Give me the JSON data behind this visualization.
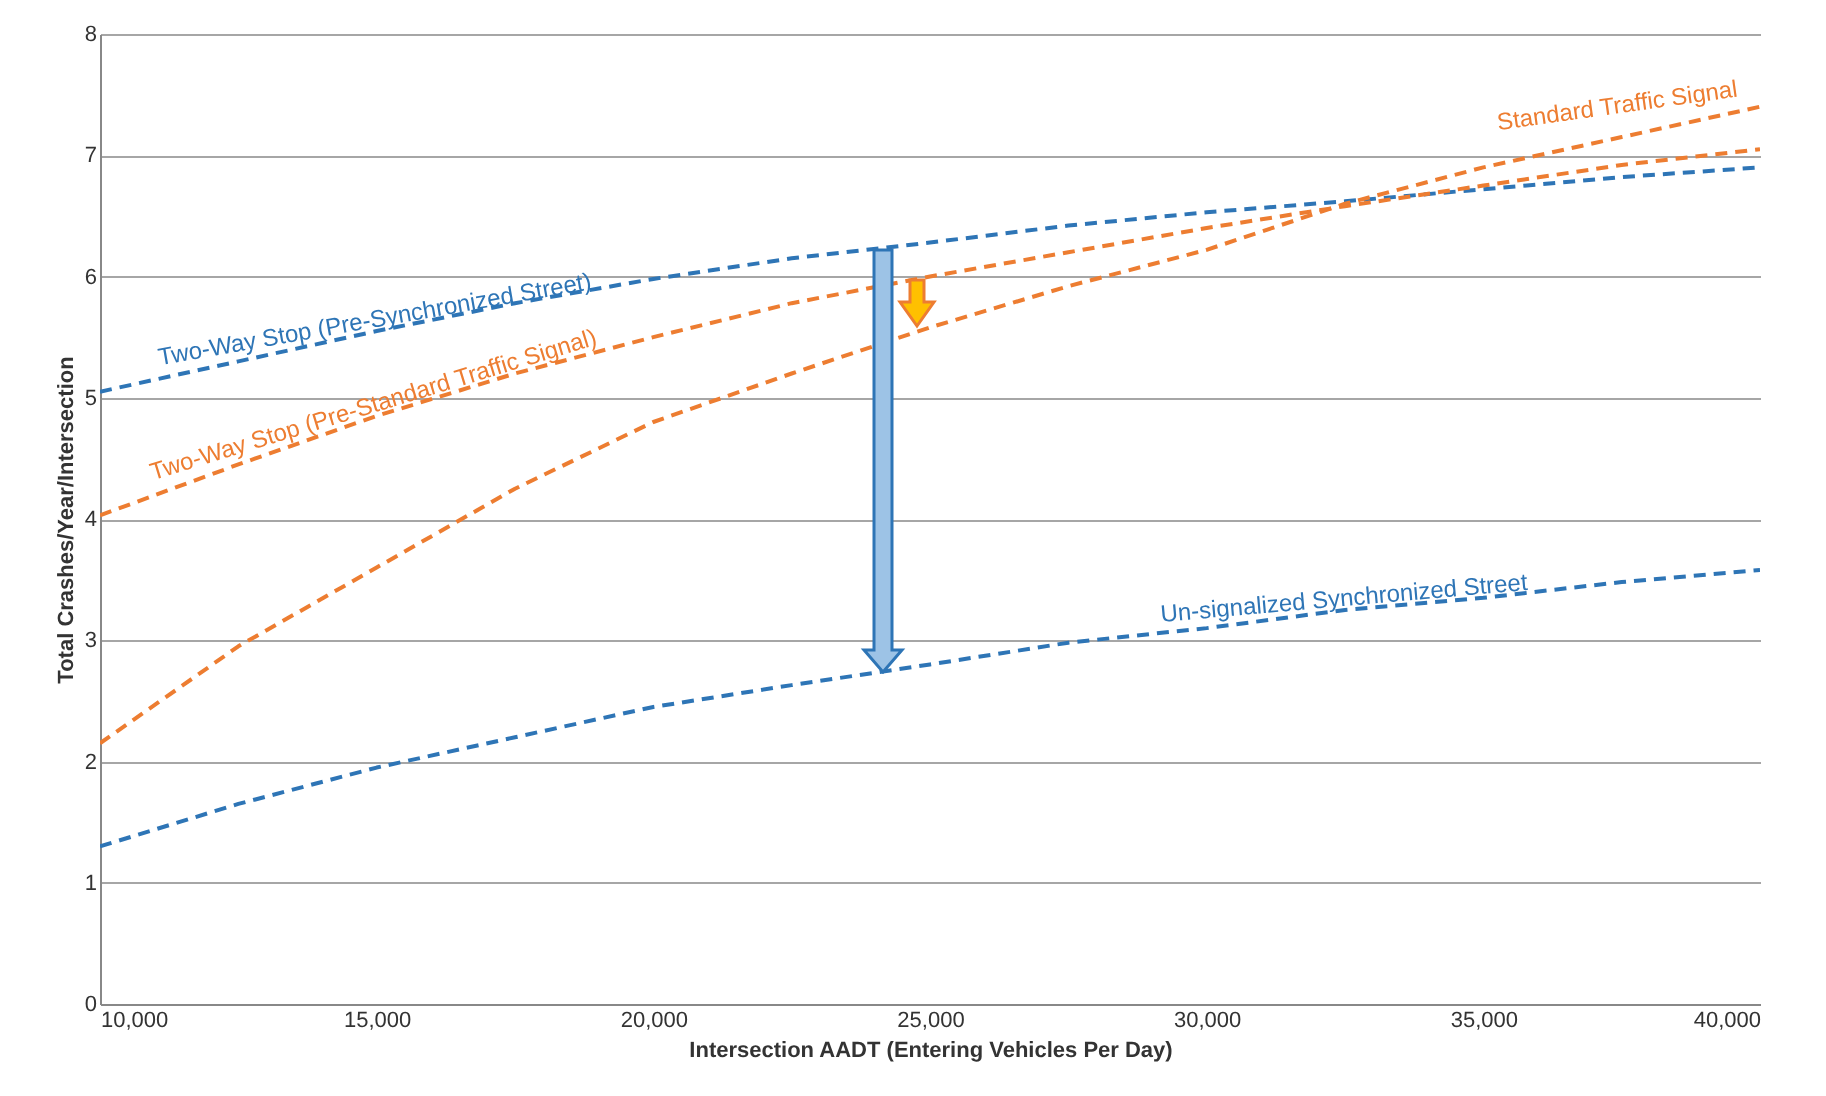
{
  "chart_data": {
    "type": "line",
    "xlabel": "Intersection AADT (Entering Vehicles Per Day)",
    "ylabel": "Total Crashes/Year/Intersection",
    "x": [
      10000,
      12500,
      15000,
      17500,
      20000,
      22500,
      25000,
      27500,
      30000,
      32500,
      35000,
      37500,
      40000
    ],
    "series": [
      {
        "name": "Two-Way Stop (Pre-Synchronized Street)",
        "color": "#2e75b6",
        "line_style": "dashed",
        "values": [
          5.05,
          5.3,
          5.55,
          5.78,
          5.98,
          6.15,
          6.28,
          6.42,
          6.53,
          6.62,
          6.72,
          6.82,
          6.9
        ]
      },
      {
        "name": "Two-Way Stop (Pre-Standard Traffic Signal)",
        "color": "#ed7d31",
        "line_style": "dashed",
        "values": [
          4.03,
          4.45,
          4.85,
          5.2,
          5.5,
          5.78,
          6.0,
          6.2,
          6.4,
          6.58,
          6.75,
          6.92,
          7.05
        ]
      },
      {
        "name": "Standard Traffic Signal",
        "color": "#ed7d31",
        "line_style": "dashed",
        "values": [
          2.15,
          2.95,
          3.6,
          4.25,
          4.8,
          5.2,
          5.58,
          5.92,
          6.22,
          6.6,
          6.9,
          7.15,
          7.4
        ]
      },
      {
        "name": "Un-signalized Synchronized Street",
        "color": "#2e75b6",
        "line_style": "dashed",
        "values": [
          1.3,
          1.65,
          1.95,
          2.2,
          2.45,
          2.63,
          2.8,
          2.98,
          3.1,
          3.25,
          3.35,
          3.48,
          3.58
        ]
      }
    ],
    "xlim": [
      10000,
      40000
    ],
    "xticks": [
      {
        "value": 10000,
        "label": "10,000"
      },
      {
        "value": 15000,
        "label": "15,000"
      },
      {
        "value": 20000,
        "label": "20,000"
      },
      {
        "value": 25000,
        "label": "25,000"
      },
      {
        "value": 30000,
        "label": "30,000"
      },
      {
        "value": 35000,
        "label": "35,000"
      },
      {
        "value": 40000,
        "label": "40,000"
      }
    ],
    "ylim": [
      0,
      8
    ],
    "yticks": [
      0,
      1,
      2,
      3,
      4,
      5,
      6,
      7,
      8
    ],
    "grid": "y",
    "marker": "none"
  }
}
